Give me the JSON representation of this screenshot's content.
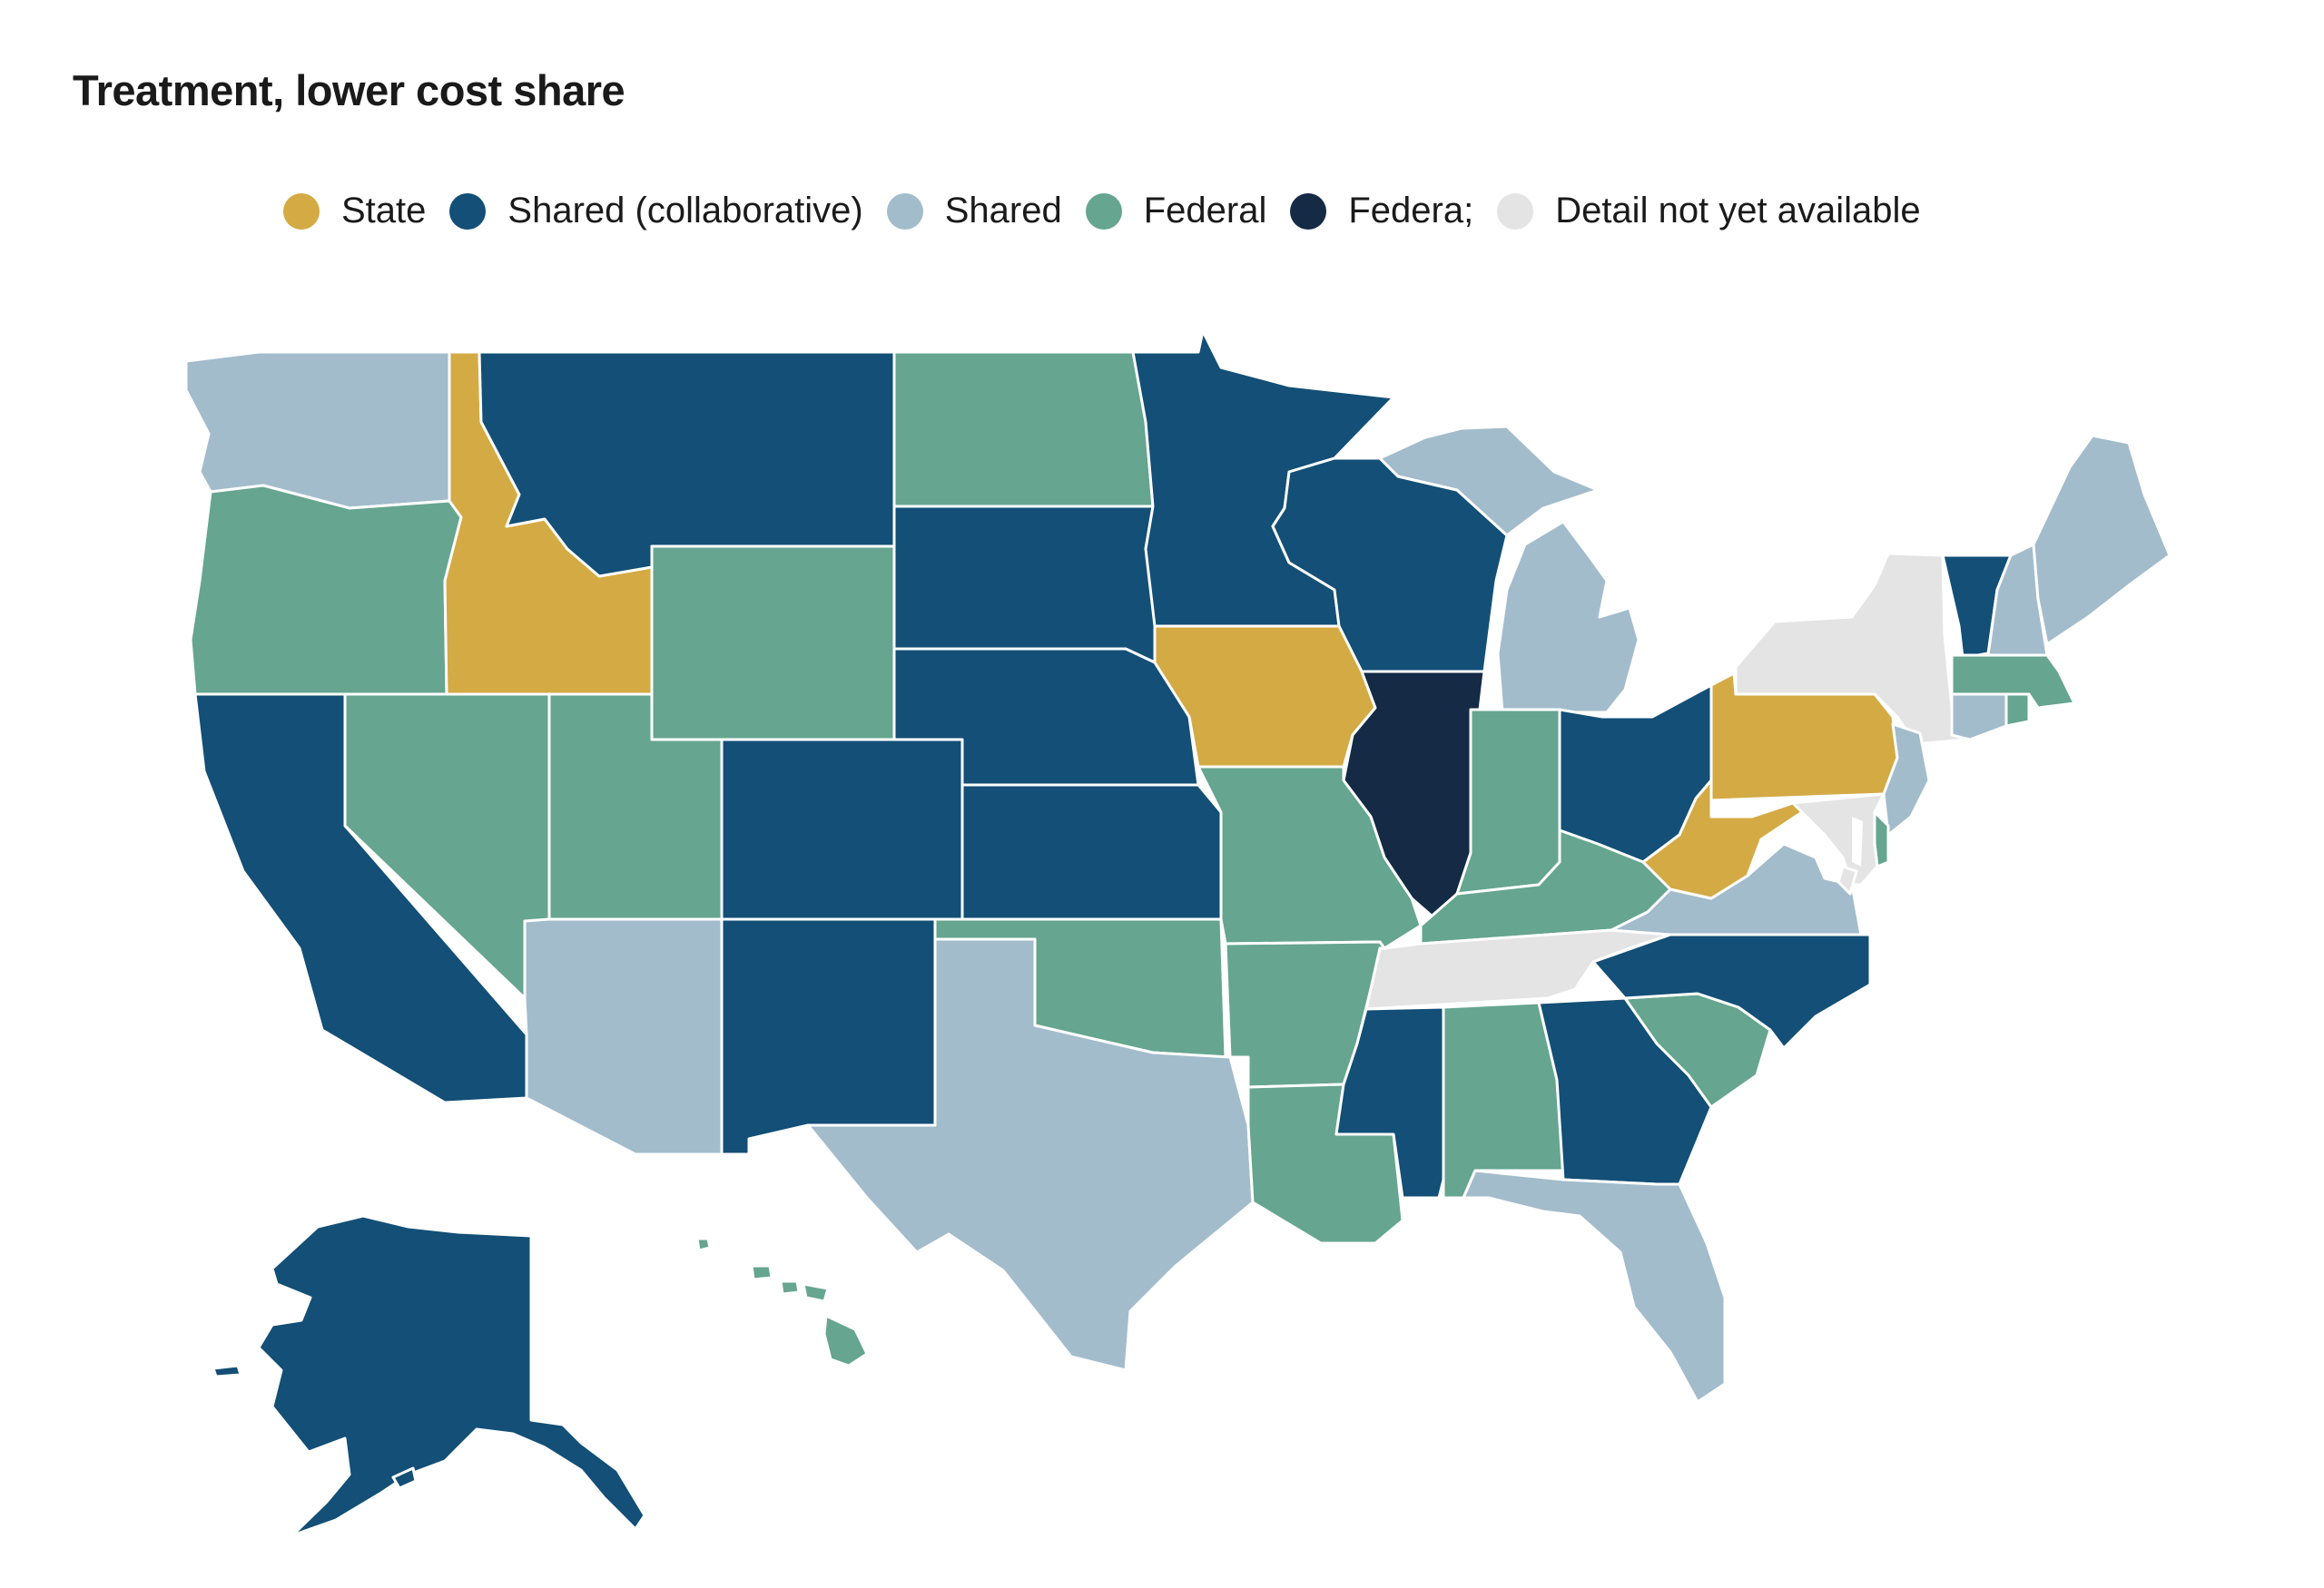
{
  "title": "Treatment, lower cost share",
  "legend": [
    {
      "key": "state",
      "label": "State",
      "color": "#D4AA45"
    },
    {
      "key": "shared_collab",
      "label": "Shared (collaborative)",
      "color": "#134F76"
    },
    {
      "key": "shared",
      "label": "Shared",
      "color": "#A3BCCC"
    },
    {
      "key": "federal",
      "label": "Federal",
      "color": "#66A58F"
    },
    {
      "key": "federa",
      "label": "Federa;",
      "color": "#142A45"
    },
    {
      "key": "na",
      "label": "Detail not yet available",
      "color": "#E4E4E4"
    }
  ],
  "states": {
    "WA": "shared",
    "OR": "federal",
    "CA": "shared_collab",
    "ID": "state",
    "NV": "federal",
    "MT": "shared_collab",
    "WY": "federal",
    "UT": "federal",
    "AZ": "shared",
    "CO": "shared_collab",
    "NM": "shared_collab",
    "ND": "federal",
    "SD": "shared_collab",
    "NE": "shared_collab",
    "KS": "shared_collab",
    "OK": "federal",
    "TX": "shared",
    "MN": "shared_collab",
    "IA": "state",
    "MO": "federal",
    "AR": "federal",
    "LA": "federal",
    "WI": "shared_collab",
    "IL": "federa",
    "MI": "shared",
    "IN": "federal",
    "OH": "shared_collab",
    "KY": "federal",
    "TN": "na",
    "MS": "shared_collab",
    "AL": "federal",
    "GA": "shared_collab",
    "FL": "shared",
    "SC": "federal",
    "NC": "shared_collab",
    "VA": "shared",
    "WV": "state",
    "PA": "state",
    "NY": "na",
    "VT": "shared_collab",
    "NH": "shared",
    "ME": "shared",
    "MA": "federal",
    "RI": "federal",
    "CT": "shared",
    "NJ": "shared",
    "DE": "federal",
    "MD": "na",
    "DC": "na",
    "AK": "shared_collab",
    "HI": "federal"
  }
}
